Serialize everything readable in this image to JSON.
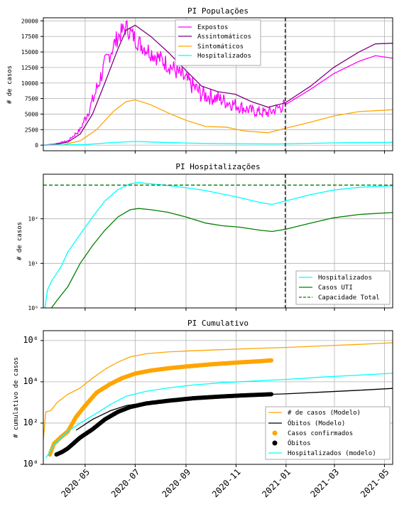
{
  "chart_data": [
    {
      "type": "line",
      "title": "PI Populações",
      "ylabel": "# de casos",
      "ylim": [
        -900,
        20500
      ],
      "yticks": [
        0,
        2500,
        5000,
        7500,
        10000,
        12500,
        15000,
        17500,
        20000
      ],
      "ytick_labels": [
        "0",
        "2500",
        "5000",
        "7500",
        "10000",
        "12500",
        "15000",
        "17500",
        "20000"
      ],
      "x_range": [
        "2020-03-11",
        "2021-05-11"
      ],
      "vline": "2020-12-31",
      "grid": true,
      "legend": "top-center",
      "series": [
        {
          "name": "Expostos",
          "color": "#ff00ff",
          "noisy": true,
          "points": [
            [
              "2020-03-11",
              0
            ],
            [
              "2020-03-25",
              200
            ],
            [
              "2020-04-10",
              700
            ],
            [
              "2020-04-25",
              2500
            ],
            [
              "2020-05-10",
              7000
            ],
            [
              "2020-05-25",
              13000
            ],
            [
              "2020-06-10",
              17500
            ],
            [
              "2020-06-20",
              19000
            ],
            [
              "2020-07-05",
              16500
            ],
            [
              "2020-07-25",
              14500
            ],
            [
              "2020-08-15",
              12500
            ],
            [
              "2020-09-01",
              10500
            ],
            [
              "2020-09-20",
              8200
            ],
            [
              "2020-10-10",
              7500
            ],
            [
              "2020-10-31",
              6500
            ],
            [
              "2020-11-20",
              5500
            ],
            [
              "2020-12-10",
              5200
            ],
            [
              "2020-12-31",
              6500
            ],
            [
              "2021-01-31",
              9000
            ],
            [
              "2021-02-28",
              11500
            ],
            [
              "2021-03-31",
              13500
            ],
            [
              "2021-04-20",
              14400
            ],
            [
              "2021-05-11",
              14000
            ]
          ]
        },
        {
          "name": "Assintomáticos",
          "color": "#800080",
          "noisy": false,
          "points": [
            [
              "2020-03-11",
              0
            ],
            [
              "2020-03-25",
              100
            ],
            [
              "2020-04-10",
              500
            ],
            [
              "2020-04-25",
              1800
            ],
            [
              "2020-05-10",
              5000
            ],
            [
              "2020-05-25",
              10000
            ],
            [
              "2020-06-10",
              15500
            ],
            [
              "2020-06-20",
              18500
            ],
            [
              "2020-07-01",
              19300
            ],
            [
              "2020-07-20",
              17500
            ],
            [
              "2020-08-10",
              15000
            ],
            [
              "2020-09-01",
              12000
            ],
            [
              "2020-09-20",
              9500
            ],
            [
              "2020-10-10",
              8600
            ],
            [
              "2020-10-31",
              8200
            ],
            [
              "2020-11-20",
              7000
            ],
            [
              "2020-12-10",
              6100
            ],
            [
              "2020-12-31",
              6800
            ],
            [
              "2021-01-31",
              9500
            ],
            [
              "2021-02-28",
              12500
            ],
            [
              "2021-03-31",
              15000
            ],
            [
              "2021-04-20",
              16300
            ],
            [
              "2021-05-11",
              16400
            ]
          ]
        },
        {
          "name": "Sintomáticos",
          "color": "#ffa500",
          "noisy": false,
          "points": [
            [
              "2020-03-11",
              0
            ],
            [
              "2020-04-05",
              100
            ],
            [
              "2020-04-25",
              700
            ],
            [
              "2020-05-15",
              2500
            ],
            [
              "2020-06-05",
              5500
            ],
            [
              "2020-06-20",
              7000
            ],
            [
              "2020-07-01",
              7300
            ],
            [
              "2020-07-20",
              6500
            ],
            [
              "2020-08-10",
              5200
            ],
            [
              "2020-09-01",
              4000
            ],
            [
              "2020-09-25",
              3000
            ],
            [
              "2020-10-20",
              2900
            ],
            [
              "2020-11-10",
              2300
            ],
            [
              "2020-12-10",
              2000
            ],
            [
              "2020-12-31",
              2700
            ],
            [
              "2021-01-31",
              3700
            ],
            [
              "2021-02-28",
              4700
            ],
            [
              "2021-03-31",
              5400
            ],
            [
              "2021-05-11",
              5700
            ]
          ]
        },
        {
          "name": "Hospitalizados",
          "color": "#00ffff",
          "noisy": false,
          "points": [
            [
              "2020-03-11",
              0
            ],
            [
              "2020-05-01",
              100
            ],
            [
              "2020-06-01",
              400
            ],
            [
              "2020-07-01",
              600
            ],
            [
              "2020-08-01",
              450
            ],
            [
              "2020-09-15",
              300
            ],
            [
              "2020-11-01",
              250
            ],
            [
              "2020-12-20",
              200
            ],
            [
              "2021-02-01",
              300
            ],
            [
              "2021-03-15",
              400
            ],
            [
              "2021-05-11",
              450
            ]
          ]
        }
      ]
    },
    {
      "type": "line",
      "title": "PI Hospitalizações",
      "ylabel": "# de casos",
      "yscale": "log",
      "ylim": [
        1,
        1000
      ],
      "yticks": [
        1,
        10,
        100
      ],
      "ytick_labels": [
        "10⁰",
        "10¹",
        "10²"
      ],
      "x_range": [
        "2020-03-11",
        "2021-05-11"
      ],
      "vline": "2020-12-31",
      "hline": 570,
      "grid": true,
      "legend": "lower-right",
      "legend_entries": [
        "Hospitalizados",
        "Casos UTI",
        "Capacidade Total"
      ],
      "series": [
        {
          "name": "Hospitalizados",
          "color": "#00ffff",
          "points": [
            [
              "2020-03-13",
              1
            ],
            [
              "2020-03-16",
              2.5
            ],
            [
              "2020-03-21",
              4
            ],
            [
              "2020-04-01",
              8
            ],
            [
              "2020-04-10",
              18
            ],
            [
              "2020-04-25",
              45
            ],
            [
              "2020-05-10",
              110
            ],
            [
              "2020-05-25",
              250
            ],
            [
              "2020-06-10",
              450
            ],
            [
              "2020-06-25",
              610
            ],
            [
              "2020-07-05",
              650
            ],
            [
              "2020-07-20",
              610
            ],
            [
              "2020-08-10",
              560
            ],
            [
              "2020-09-01",
              500
            ],
            [
              "2020-09-25",
              430
            ],
            [
              "2020-10-15",
              360
            ],
            [
              "2020-11-05",
              300
            ],
            [
              "2020-12-01",
              230
            ],
            [
              "2020-12-15",
              210
            ],
            [
              "2020-12-31",
              250
            ],
            [
              "2021-01-31",
              350
            ],
            [
              "2021-02-28",
              440
            ],
            [
              "2021-03-31",
              510
            ],
            [
              "2021-05-11",
              550
            ]
          ]
        },
        {
          "name": "Casos UTI",
          "color": "#008000",
          "points": [
            [
              "2020-03-21",
              1
            ],
            [
              "2020-03-28",
              1.5
            ],
            [
              "2020-04-10",
              3
            ],
            [
              "2020-04-25",
              10
            ],
            [
              "2020-05-10",
              25
            ],
            [
              "2020-05-25",
              55
            ],
            [
              "2020-06-10",
              110
            ],
            [
              "2020-06-25",
              160
            ],
            [
              "2020-07-05",
              170
            ],
            [
              "2020-07-20",
              160
            ],
            [
              "2020-08-10",
              140
            ],
            [
              "2020-09-01",
              110
            ],
            [
              "2020-09-25",
              80
            ],
            [
              "2020-10-15",
              70
            ],
            [
              "2020-11-05",
              65
            ],
            [
              "2020-12-01",
              55
            ],
            [
              "2020-12-15",
              52
            ],
            [
              "2020-12-31",
              58
            ],
            [
              "2021-01-31",
              80
            ],
            [
              "2021-02-28",
              105
            ],
            [
              "2021-03-31",
              125
            ],
            [
              "2021-05-11",
              138
            ]
          ]
        },
        {
          "name": "Capacidade Total",
          "color": "#008000",
          "dashed": true,
          "points": [
            [
              "2020-03-11",
              570
            ],
            [
              "2021-05-11",
              570
            ]
          ]
        }
      ]
    },
    {
      "type": "line",
      "title": "PI Cumulativo",
      "ylabel": "# cumulativo de casos",
      "yscale": "log",
      "ylim": [
        1,
        3000000
      ],
      "yticks": [
        1,
        100,
        10000,
        1000000
      ],
      "ytick_labels": [
        "10⁰",
        "10²",
        "10⁴",
        "10⁶"
      ],
      "x_range": [
        "2020-03-11",
        "2021-05-11"
      ],
      "xticks": [
        "2020-05-01",
        "2020-07-01",
        "2020-09-01",
        "2020-11-01",
        "2021-01-01",
        "2021-03-01",
        "2021-05-01"
      ],
      "xtick_labels": [
        "2020-05",
        "2020-07",
        "2020-09",
        "2020-11",
        "2021-01",
        "2021-03",
        "2021-05"
      ],
      "grid": true,
      "legend": "lower-right",
      "legend_entries": [
        "# de casos (Modelo)",
        "Óbitos (Modelo)",
        "Casos confirmados",
        "Óbitos",
        "Hospitalizados (modelo)"
      ],
      "series": [
        {
          "name": "# de casos (Modelo)",
          "color": "#ffa500",
          "points": [
            [
              "2020-03-11",
              15
            ],
            [
              "2020-03-14",
              350
            ],
            [
              "2020-03-20",
              400
            ],
            [
              "2020-03-28",
              1000
            ],
            [
              "2020-04-10",
              2500
            ],
            [
              "2020-04-25",
              5000
            ],
            [
              "2020-05-10",
              15000
            ],
            [
              "2020-05-25",
              40000
            ],
            [
              "2020-06-10",
              90000
            ],
            [
              "2020-06-25",
              160000
            ],
            [
              "2020-07-15",
              230000
            ],
            [
              "2020-08-10",
              280000
            ],
            [
              "2020-09-10",
              320000
            ],
            [
              "2020-10-15",
              360000
            ],
            [
              "2020-11-15",
              400000
            ],
            [
              "2020-12-31",
              460000
            ],
            [
              "2021-02-15",
              550000
            ],
            [
              "2021-03-31",
              650000
            ],
            [
              "2021-05-11",
              780000
            ]
          ]
        },
        {
          "name": "Óbitos (Modelo)",
          "color": "#000000",
          "points": [
            [
              "2020-04-20",
              45
            ],
            [
              "2020-05-10",
              150
            ],
            [
              "2020-06-01",
              400
            ],
            [
              "2020-06-20",
              700
            ],
            [
              "2020-07-15",
              1000
            ],
            [
              "2020-08-15",
              1400
            ],
            [
              "2020-09-15",
              1800
            ],
            [
              "2020-10-15",
              2100
            ],
            [
              "2020-11-15",
              2300
            ],
            [
              "2020-12-31",
              2600
            ],
            [
              "2021-02-15",
              3200
            ],
            [
              "2021-03-31",
              3900
            ],
            [
              "2021-05-11",
              4800
            ]
          ]
        },
        {
          "name": "Casos confirmados",
          "color": "#ffa500",
          "marker": "dot",
          "points": [
            [
              "2020-03-19",
              3
            ],
            [
              "2020-03-24",
              10
            ],
            [
              "2020-04-01",
              20
            ],
            [
              "2020-04-10",
              40
            ],
            [
              "2020-04-20",
              200
            ],
            [
              "2020-05-01",
              700
            ],
            [
              "2020-05-15",
              3000
            ],
            [
              "2020-06-01",
              8000
            ],
            [
              "2020-06-15",
              15000
            ],
            [
              "2020-07-01",
              25000
            ],
            [
              "2020-07-20",
              35000
            ],
            [
              "2020-08-10",
              45000
            ],
            [
              "2020-09-01",
              55000
            ],
            [
              "2020-10-01",
              70000
            ],
            [
              "2020-11-01",
              85000
            ],
            [
              "2020-12-01",
              100000
            ],
            [
              "2020-12-15",
              110000
            ]
          ]
        },
        {
          "name": "Óbitos",
          "color": "#000000",
          "marker": "dot",
          "points": [
            [
              "2020-03-27",
              3
            ],
            [
              "2020-04-03",
              4
            ],
            [
              "2020-04-10",
              6
            ],
            [
              "2020-04-25",
              20
            ],
            [
              "2020-05-10",
              50
            ],
            [
              "2020-05-25",
              150
            ],
            [
              "2020-06-10",
              350
            ],
            [
              "2020-06-25",
              600
            ],
            [
              "2020-07-15",
              900
            ],
            [
              "2020-08-10",
              1200
            ],
            [
              "2020-09-10",
              1600
            ],
            [
              "2020-10-10",
              1900
            ],
            [
              "2020-11-10",
              2200
            ],
            [
              "2020-12-15",
              2500
            ]
          ]
        },
        {
          "name": "Hospitalizados (modelo)",
          "color": "#00ffff",
          "points": [
            [
              "2020-03-14",
              2
            ],
            [
              "2020-03-25",
              10
            ],
            [
              "2020-04-10",
              40
            ],
            [
              "2020-04-25",
              100
            ],
            [
              "2020-05-15",
              300
            ],
            [
              "2020-06-01",
              800
            ],
            [
              "2020-06-20",
              2000
            ],
            [
              "2020-07-15",
              3500
            ],
            [
              "2020-08-10",
              5000
            ],
            [
              "2020-09-10",
              7000
            ],
            [
              "2020-10-15",
              9000
            ],
            [
              "2020-11-15",
              10500
            ],
            [
              "2020-12-31",
              13000
            ],
            [
              "2021-02-15",
              17000
            ],
            [
              "2021-03-31",
              21000
            ],
            [
              "2021-05-11",
              26000
            ]
          ]
        }
      ]
    }
  ]
}
